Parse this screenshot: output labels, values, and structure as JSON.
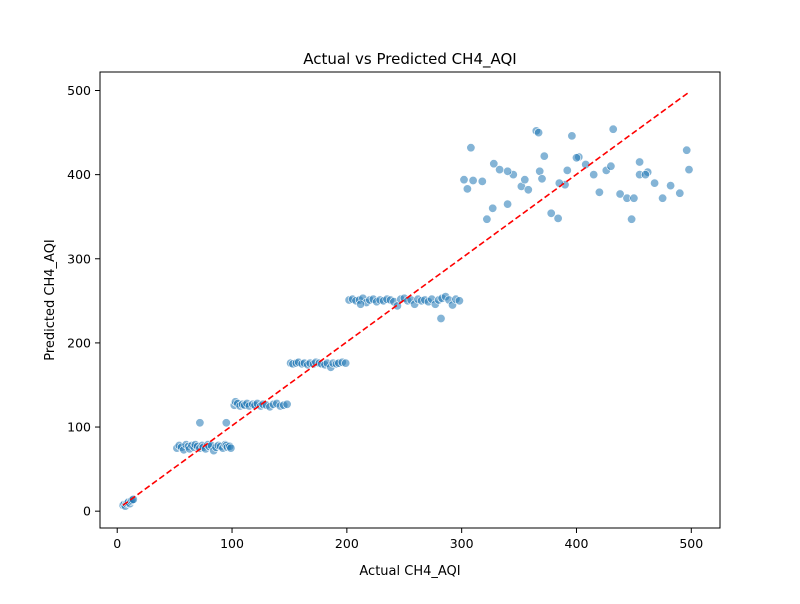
{
  "chart_data": {
    "type": "scatter",
    "title": "Actual vs Predicted CH4_AQI",
    "xlabel": "Actual CH4_AQI",
    "ylabel": "Predicted CH4_AQI",
    "xlim": [
      -15,
      525
    ],
    "ylim": [
      -20,
      522
    ],
    "xticks": [
      0,
      100,
      200,
      300,
      400,
      500
    ],
    "yticks": [
      0,
      100,
      200,
      300,
      400,
      500
    ],
    "xtick_labels": [
      "0",
      "100",
      "200",
      "300",
      "400",
      "500"
    ],
    "ytick_labels": [
      "0",
      "100",
      "200",
      "300",
      "400",
      "500"
    ],
    "grid": false,
    "legend": "none",
    "colors": {
      "points": "#1f77b4",
      "reference_line": "#ff0000",
      "axes": "#000000"
    },
    "reference_line": {
      "style": "dashed",
      "x": [
        5,
        498
      ],
      "y": [
        7,
        498
      ]
    },
    "series": [
      {
        "x": [
          5,
          6,
          7,
          8,
          9,
          10,
          11,
          12,
          13,
          14,
          52,
          54,
          56,
          58,
          60,
          62,
          63,
          65,
          67,
          68,
          70,
          72,
          74,
          75,
          77,
          79,
          80,
          82,
          84,
          86,
          88,
          90,
          92,
          94,
          95,
          96,
          98,
          99,
          72,
          95,
          102,
          103,
          105,
          107,
          109,
          111,
          113,
          115,
          118,
          120,
          122,
          125,
          127,
          130,
          133,
          136,
          139,
          142,
          145,
          148,
          151,
          153,
          156,
          158,
          161,
          163,
          166,
          168,
          171,
          173,
          176,
          178,
          181,
          183,
          186,
          188,
          191,
          193,
          196,
          199,
          202,
          205,
          208,
          211,
          214,
          217,
          220,
          223,
          226,
          229,
          232,
          235,
          238,
          241,
          244,
          247,
          250,
          253,
          256,
          259,
          262,
          265,
          268,
          271,
          274,
          277,
          280,
          283,
          286,
          289,
          292,
          295,
          298,
          282,
          212,
          302,
          305,
          310,
          318,
          322,
          328,
          333,
          340,
          345,
          352,
          358,
          365,
          368,
          372,
          378,
          384,
          390,
          396,
          402,
          408,
          415,
          420,
          426,
          432,
          438,
          444,
          450,
          455,
          462,
          468,
          475,
          482,
          490,
          496,
          498,
          308,
          327,
          367,
          370,
          392,
          400,
          430,
          448,
          385,
          455,
          340,
          355,
          460
        ],
        "y": [
          7,
          8,
          6,
          9,
          10,
          11,
          9,
          12,
          13,
          14,
          75,
          78,
          76,
          73,
          79,
          77,
          74,
          78,
          76,
          79,
          77,
          75,
          78,
          76,
          74,
          79,
          77,
          78,
          72,
          76,
          78,
          77,
          75,
          79,
          78,
          76,
          77,
          75,
          105,
          105,
          126,
          130,
          128,
          125,
          127,
          126,
          128,
          125,
          127,
          126,
          128,
          125,
          127,
          126,
          124,
          127,
          128,
          125,
          126,
          127,
          176,
          175,
          176,
          177,
          175,
          176,
          174,
          176,
          175,
          177,
          176,
          175,
          174,
          176,
          171,
          176,
          175,
          176,
          177,
          176,
          251,
          252,
          250,
          251,
          253,
          248,
          251,
          252,
          249,
          251,
          250,
          252,
          251,
          249,
          244,
          252,
          253,
          250,
          251,
          246,
          252,
          250,
          251,
          249,
          252,
          246,
          251,
          253,
          255,
          251,
          245,
          252,
          250,
          229,
          246,
          394,
          383,
          393,
          392,
          347,
          413,
          406,
          365,
          400,
          386,
          382,
          452,
          404,
          422,
          354,
          348,
          388,
          446,
          421,
          412,
          400,
          379,
          405,
          454,
          377,
          372,
          372,
          400,
          403,
          390,
          372,
          387,
          378,
          429,
          406,
          432,
          360,
          450,
          395,
          405,
          420,
          410,
          347,
          390,
          415,
          404,
          394,
          400
        ]
      }
    ]
  }
}
